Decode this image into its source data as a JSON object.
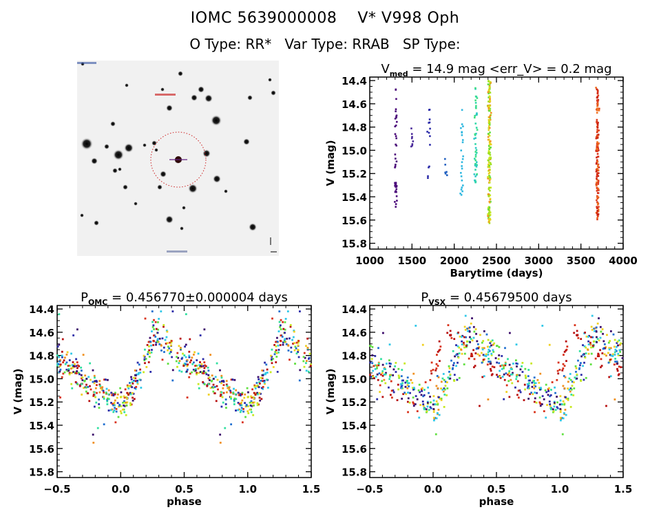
{
  "header": {
    "title_line1": "IOMC 5639000008    V* V998 Oph",
    "title_line2": "O Type: RR*   Var Type: RRAB   SP Type:"
  },
  "sky_image": {
    "label": "sky-field-image",
    "target_marker": "dashed red circle with crosshair on central star"
  },
  "chart_data": [
    {
      "id": "timeseries",
      "type": "scatter",
      "title": "V_med = 14.9 mag <err_V> = 0.2 mag",
      "title_main": "V",
      "title_sub": "med",
      "title_rest": " = 14.9 mag <err_V> = 0.2 mag",
      "xlabel": "Barytime (days)",
      "ylabel": "V (mag)",
      "xlim": [
        1000,
        4000
      ],
      "ylim": [
        15.85,
        14.37
      ],
      "y_inverted": true,
      "xticks": [
        1000,
        1500,
        2000,
        2500,
        3000,
        3500,
        4000
      ],
      "yticks": [
        14.4,
        14.6,
        14.8,
        15.0,
        15.2,
        15.4,
        15.6,
        15.8
      ],
      "groups": [
        {
          "x": 1310,
          "color": "#4b0a7a",
          "n": 40,
          "ymin": 14.47,
          "ymax": 15.49
        },
        {
          "x": 1505,
          "color": "#4a2a9a",
          "n": 8,
          "ymin": 14.81,
          "ymax": 15.04
        },
        {
          "x": 1700,
          "color": "#2a2aa8",
          "n": 14,
          "ymin": 14.55,
          "ymax": 15.39
        },
        {
          "x": 1900,
          "color": "#2060c0",
          "n": 6,
          "ymin": 14.96,
          "ymax": 15.29
        },
        {
          "x": 2090,
          "color": "#30b8e0",
          "n": 24,
          "ymin": 14.62,
          "ymax": 15.39
        },
        {
          "x": 2255,
          "color": "#30d8a8",
          "n": 50,
          "ymin": 14.45,
          "ymax": 15.29
        },
        {
          "x": 2415,
          "color": "#a0e020",
          "n": 180,
          "ymin": 14.4,
          "ymax": 15.64
        },
        {
          "x": 3695,
          "color": "#d83018",
          "n": 160,
          "ymin": 14.44,
          "ymax": 15.6
        }
      ]
    },
    {
      "id": "phase_omc",
      "type": "scatter",
      "title": "P_OMC = 0.456770±0.000004 days",
      "title_main": "P",
      "title_sub": "OMC",
      "title_rest": " = 0.456770±0.000004 days",
      "xlabel": "phase",
      "ylabel": "V (mag)",
      "xlim": [
        -0.5,
        1.5
      ],
      "ylim": [
        15.85,
        14.37
      ],
      "y_inverted": true,
      "xticks": [
        -0.5,
        0.0,
        0.5,
        1.0,
        1.5
      ],
      "xticklabels": [
        "-0.5",
        "0.0",
        "0.5",
        "1.0",
        "1.5"
      ],
      "yticks": [
        14.4,
        14.6,
        14.8,
        15.0,
        15.2,
        15.4,
        15.6,
        15.8
      ],
      "light_curve": {
        "max_phase": 0.27,
        "max_mag": 14.6,
        "min_phase": -0.05,
        "min_mag": 15.25,
        "scatter": 0.12
      },
      "n_points": 380,
      "phase_shift": 0.0
    },
    {
      "id": "phase_vsx",
      "type": "scatter",
      "title": "P_VSX = 0.45679500 days",
      "title_main": "P",
      "title_sub": "VSX",
      "title_rest": " = 0.45679500 days",
      "xlabel": "phase",
      "ylabel": "V (mag)",
      "xlim": [
        -0.5,
        1.5
      ],
      "ylim": [
        15.85,
        14.37
      ],
      "y_inverted": true,
      "xticks": [
        -0.5,
        0.0,
        0.5,
        1.0,
        1.5
      ],
      "xticklabels": [
        "-0.5",
        "0.0",
        "0.5",
        "1.0",
        "1.5"
      ],
      "yticks": [
        14.4,
        14.6,
        14.8,
        15.0,
        15.2,
        15.4,
        15.6,
        15.8
      ],
      "light_curve": {
        "max_phase": 0.27,
        "max_mag": 14.6,
        "min_phase": -0.08,
        "min_mag": 15.25,
        "scatter": 0.12
      },
      "n_points": 380,
      "phase_shift": 0.0,
      "red_shift": -0.15
    }
  ],
  "colors": {
    "epoch_palette": [
      "#3a0a6a",
      "#2a2aa8",
      "#2070d0",
      "#30c8e8",
      "#30e0a0",
      "#60e040",
      "#c8e820",
      "#f0d020",
      "#f09020",
      "#d83018",
      "#b81010"
    ]
  }
}
